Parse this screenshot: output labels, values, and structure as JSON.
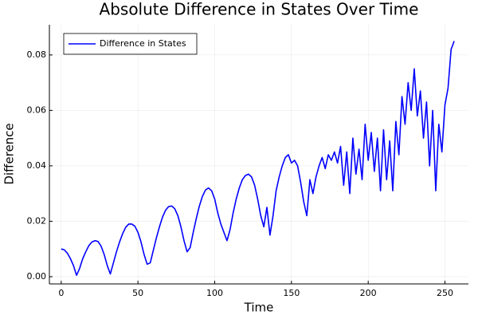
{
  "chart_data": {
    "type": "line",
    "title": "Absolute Difference in States Over Time",
    "x_label": "Time",
    "y_label": "Difference",
    "x": [
      0,
      2,
      4,
      6,
      8,
      10,
      12,
      14,
      16,
      18,
      20,
      22,
      24,
      26,
      28,
      30,
      32,
      34,
      36,
      38,
      40,
      42,
      44,
      46,
      48,
      50,
      52,
      54,
      56,
      58,
      60,
      62,
      64,
      66,
      68,
      70,
      72,
      74,
      76,
      78,
      80,
      82,
      84,
      86,
      88,
      90,
      92,
      94,
      96,
      98,
      100,
      102,
      104,
      106,
      108,
      110,
      112,
      114,
      116,
      118,
      120,
      122,
      124,
      126,
      128,
      130,
      132,
      134,
      136,
      138,
      140,
      142,
      144,
      146,
      148,
      150,
      152,
      154,
      156,
      158,
      160,
      162,
      164,
      166,
      168,
      170,
      172,
      174,
      176,
      178,
      180,
      182,
      184,
      186,
      188,
      190,
      192,
      194,
      196,
      198,
      200,
      202,
      204,
      206,
      208,
      210,
      212,
      214,
      216,
      218,
      220,
      222,
      224,
      226,
      228,
      230,
      232,
      234,
      236,
      238,
      240,
      242,
      244,
      246,
      248,
      250,
      252,
      254,
      256
    ],
    "series": [
      {
        "name": "Difference in States",
        "color": "#0000ff",
        "values": [
          0.01,
          0.0097,
          0.0085,
          0.0065,
          0.004,
          0.0005,
          0.003,
          0.0065,
          0.009,
          0.0112,
          0.0125,
          0.013,
          0.0127,
          0.011,
          0.008,
          0.004,
          0.001,
          0.005,
          0.009,
          0.0125,
          0.0155,
          0.0178,
          0.019,
          0.019,
          0.0182,
          0.016,
          0.0125,
          0.008,
          0.0045,
          0.005,
          0.0095,
          0.014,
          0.018,
          0.0215,
          0.024,
          0.0253,
          0.0255,
          0.0245,
          0.022,
          0.018,
          0.013,
          0.009,
          0.0105,
          0.016,
          0.021,
          0.0255,
          0.029,
          0.0313,
          0.032,
          0.031,
          0.028,
          0.023,
          0.019,
          0.016,
          0.013,
          0.017,
          0.023,
          0.028,
          0.032,
          0.035,
          0.0365,
          0.037,
          0.036,
          0.033,
          0.028,
          0.022,
          0.018,
          0.025,
          0.015,
          0.022,
          0.031,
          0.036,
          0.04,
          0.043,
          0.044,
          0.041,
          0.042,
          0.04,
          0.034,
          0.027,
          0.022,
          0.035,
          0.03,
          0.036,
          0.04,
          0.043,
          0.039,
          0.044,
          0.042,
          0.045,
          0.041,
          0.047,
          0.033,
          0.045,
          0.03,
          0.05,
          0.037,
          0.046,
          0.035,
          0.055,
          0.042,
          0.052,
          0.038,
          0.05,
          0.031,
          0.053,
          0.035,
          0.049,
          0.031,
          0.056,
          0.044,
          0.065,
          0.055,
          0.07,
          0.06,
          0.075,
          0.058,
          0.067,
          0.05,
          0.063,
          0.04,
          0.06,
          0.031,
          0.055,
          0.045,
          0.062,
          0.068,
          0.082,
          0.085
        ]
      }
    ],
    "xlim": [
      -7.7,
      265.3
    ],
    "ylim": [
      -0.0026,
      0.0909
    ],
    "xticks": [
      0,
      50,
      100,
      150,
      200,
      250
    ],
    "yticks": [
      {
        "value": 0,
        "label": "0.00"
      },
      {
        "value": 0.02,
        "label": "0.02"
      },
      {
        "value": 0.04,
        "label": "0.04"
      },
      {
        "value": 0.06,
        "label": "0.06"
      },
      {
        "value": 0.08,
        "label": "0.08"
      }
    ],
    "grid": true,
    "legend": "top-left"
  }
}
